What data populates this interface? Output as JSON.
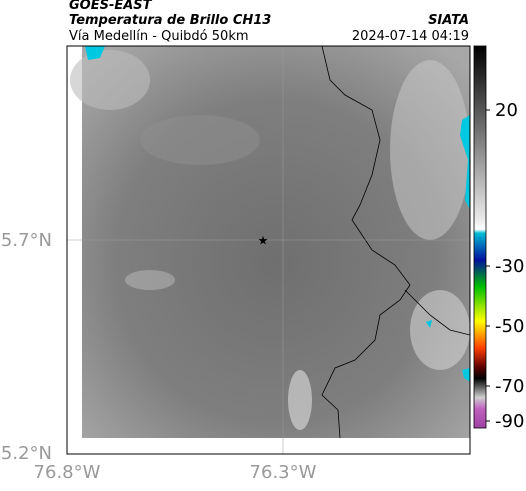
{
  "header": {
    "title": "GOES-EAST",
    "subtitle": "Temperatura de Brillo CH13",
    "source": "SIATA",
    "region": "Vía Medellín - Quibdó 50km",
    "timestamp": "2024-07-14 04:19"
  },
  "map": {
    "lat_labels": [
      "5.7°N",
      "5.2°N"
    ],
    "lon_labels": [
      "76.8°W",
      "76.3°W"
    ]
  },
  "colorbar": {
    "tick_labels": [
      "20",
      "-30",
      "-50",
      "-70",
      "-90"
    ]
  }
}
